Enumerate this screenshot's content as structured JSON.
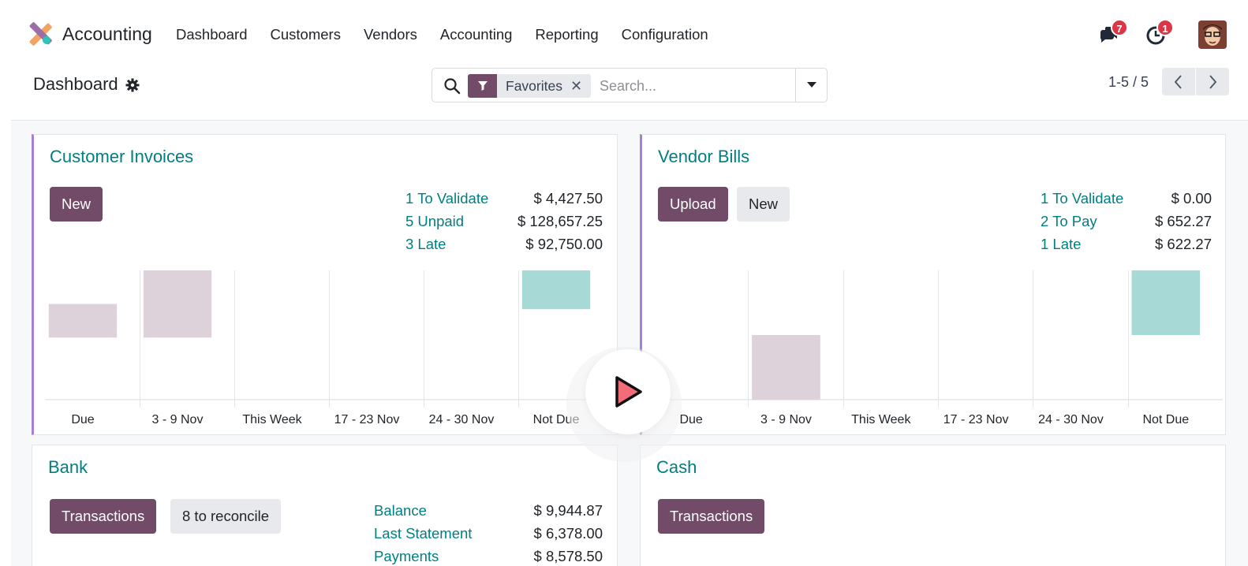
{
  "app": {
    "name": "Accounting"
  },
  "menu": [
    "Dashboard",
    "Customers",
    "Vendors",
    "Accounting",
    "Reporting",
    "Configuration"
  ],
  "systray": {
    "messages_count": "7",
    "activities_count": "1"
  },
  "control_panel": {
    "title": "Dashboard",
    "search": {
      "facet": "Favorites",
      "placeholder": "Search..."
    },
    "pager": "1-5 / 5"
  },
  "cards": {
    "customer_invoices": {
      "title": "Customer Invoices",
      "buttons": {
        "new": "New"
      },
      "stats": [
        {
          "label": "1 To Validate",
          "value": "$ 4,427.50"
        },
        {
          "label": "5 Unpaid",
          "value": "$ 128,657.25"
        },
        {
          "label": "3 Late",
          "value": "$ 92,750.00"
        }
      ]
    },
    "vendor_bills": {
      "title": "Vendor Bills",
      "buttons": {
        "upload": "Upload",
        "new": "New"
      },
      "stats": [
        {
          "label": "1 To Validate",
          "value": "$ 0.00"
        },
        {
          "label": "2 To Pay",
          "value": "$ 652.27"
        },
        {
          "label": "1 Late",
          "value": "$ 622.27"
        }
      ]
    },
    "bank": {
      "title": "Bank",
      "buttons": {
        "transactions": "Transactions",
        "reconcile": "8 to reconcile"
      },
      "stats": [
        {
          "label": "Balance",
          "value": "$ 9,944.87"
        },
        {
          "label": "Last Statement",
          "value": "$ 6,378.00"
        },
        {
          "label": "Payments",
          "value": "$ 8,578.50"
        }
      ]
    },
    "cash": {
      "title": "Cash",
      "buttons": {
        "transactions": "Transactions"
      }
    }
  },
  "chart_data": [
    {
      "type": "bar",
      "categories": [
        "Due",
        "3 - 9 Nov",
        "This Week",
        "17 - 23 Nov",
        "24 - 30 Nov",
        "Not Due"
      ],
      "values": [
        -1.3,
        -2.6,
        0,
        0,
        0,
        -1.5
      ],
      "value_base": [
        -1.3,
        0,
        0,
        0,
        0,
        0
      ],
      "bar_colors": [
        "#ddd1da",
        "#ddd1da",
        "#ddd1da",
        "#ddd1da",
        "#ddd1da",
        "#a7dad6"
      ],
      "ylim": [
        -5,
        0
      ]
    },
    {
      "type": "bar",
      "categories": [
        "Due",
        "3 - 9 Nov",
        "This Week",
        "17 - 23 Nov",
        "24 - 30 Nov",
        "Not Due"
      ],
      "values": [
        0,
        2.5,
        0,
        0,
        0,
        2.5
      ],
      "value_base": [
        0,
        0,
        0,
        0,
        0,
        2.5
      ],
      "bar_colors": [
        "#ddd1da",
        "#ddd1da",
        "#ddd1da",
        "#ddd1da",
        "#ddd1da",
        "#a7dad6"
      ],
      "ylim": [
        0,
        5
      ]
    }
  ]
}
